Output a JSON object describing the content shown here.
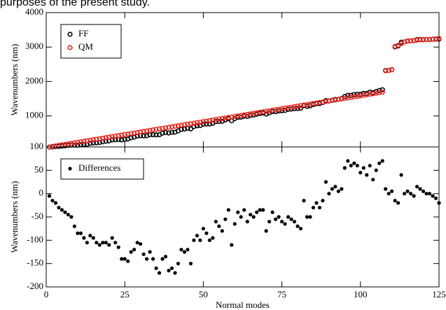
{
  "caption": "purposes of the present study.",
  "chart_data": [
    {
      "type": "scatter",
      "ylabel": "Wavenumbers (nm)",
      "marker": "open",
      "legend": "upper left",
      "xlim": [
        0,
        125
      ],
      "xticks": [
        0,
        25,
        50,
        75,
        100,
        125
      ],
      "ylim": [
        100,
        4000
      ],
      "yticks": [
        100,
        1000,
        2000,
        3000,
        4000
      ],
      "x": [
        1,
        2,
        3,
        4,
        5,
        6,
        7,
        8,
        9,
        10,
        11,
        12,
        13,
        14,
        15,
        16,
        17,
        18,
        19,
        20,
        21,
        22,
        23,
        24,
        25,
        26,
        27,
        28,
        29,
        30,
        31,
        32,
        33,
        34,
        35,
        36,
        37,
        38,
        39,
        40,
        41,
        42,
        43,
        44,
        45,
        46,
        47,
        48,
        49,
        50,
        51,
        52,
        53,
        54,
        55,
        56,
        57,
        58,
        59,
        60,
        61,
        62,
        63,
        64,
        65,
        66,
        67,
        68,
        69,
        70,
        71,
        72,
        73,
        74,
        75,
        76,
        77,
        78,
        79,
        80,
        81,
        82,
        83,
        84,
        85,
        86,
        87,
        88,
        89,
        90,
        91,
        92,
        93,
        94,
        95,
        96,
        97,
        98,
        99,
        100,
        101,
        102,
        103,
        104,
        105,
        106,
        107,
        108,
        109,
        110,
        111,
        112,
        113,
        114,
        115,
        116,
        117,
        118,
        119,
        120,
        121,
        122,
        123,
        124,
        125
      ],
      "series": [
        {
          "name": "FF",
          "color": "#000000",
          "values": [
            95,
            100,
            110,
            115,
            125,
            135,
            145,
            155,
            150,
            150,
            165,
            170,
            175,
            205,
            215,
            220,
            230,
            250,
            265,
            275,
            305,
            310,
            315,
            305,
            320,
            330,
            365,
            385,
            415,
            427,
            420,
            425,
            455,
            455,
            450,
            455,
            500,
            520,
            505,
            525,
            530,
            565,
            610,
            620,
            640,
            625,
            690,
            715,
            720,
            760,
            765,
            765,
            785,
            835,
            840,
            845,
            885,
            920,
            860,
            920,
            960,
            965,
            995,
            985,
            1015,
            1025,
            1050,
            1070,
            1085,
            1055,
            1090,
            1125,
            1125,
            1145,
            1150,
            1160,
            1190,
            1200,
            1210,
            1215,
            1225,
            1300,
            1280,
            1295,
            1330,
            1355,
            1360,
            1390,
            1445,
            1435,
            1460,
            1480,
            1485,
            1505,
            1565,
            1595,
            1600,
            1620,
            1630,
            1630,
            1655,
            1655,
            1690,
            1675,
            1710,
            1740,
            1760,
            2320,
            2320,
            2345,
            3005,
            3030,
            3140,
            3150,
            3175,
            3180,
            3185,
            3215,
            3220,
            3215,
            3220,
            3220,
            3225,
            3230,
            3230
          ]
        },
        {
          "name": "QM",
          "color": "#e8231c",
          "values": [
            100,
            115,
            130,
            145,
            160,
            175,
            190,
            205,
            220,
            235,
            250,
            265,
            280,
            295,
            310,
            325,
            340,
            355,
            370,
            385,
            400,
            415,
            430,
            445,
            460,
            475,
            490,
            505,
            520,
            535,
            550,
            565,
            580,
            595,
            610,
            625,
            640,
            655,
            670,
            685,
            700,
            715,
            730,
            745,
            760,
            775,
            790,
            805,
            820,
            835,
            850,
            865,
            880,
            895,
            910,
            925,
            940,
            955,
            970,
            985,
            1000,
            1015,
            1030,
            1045,
            1060,
            1075,
            1090,
            1105,
            1120,
            1135,
            1150,
            1165,
            1180,
            1195,
            1210,
            1225,
            1240,
            1255,
            1270,
            1285,
            1300,
            1315,
            1330,
            1345,
            1360,
            1375,
            1390,
            1405,
            1420,
            1435,
            1450,
            1465,
            1480,
            1495,
            1510,
            1525,
            1540,
            1555,
            1570,
            1585,
            1600,
            1615,
            1630,
            1645,
            1660,
            1675,
            1690,
            2310,
            2320,
            2340,
            3020,
            3050,
            3100,
            3150,
            3170,
            3180,
            3190,
            3200,
            3210,
            3210,
            3220,
            3220,
            3230,
            3240,
            3250
          ]
        }
      ]
    },
    {
      "type": "scatter",
      "ylabel": "Wavenumbers (nm)",
      "xlabel": "Normal modes",
      "marker": "filled",
      "legend": "upper left",
      "xlim": [
        0,
        125
      ],
      "xticks": [
        0,
        25,
        50,
        75,
        100,
        125
      ],
      "ylim": [
        -200,
        100
      ],
      "yticks": [
        -200,
        -150,
        -100,
        -50,
        0,
        50
      ],
      "x": [
        1,
        2,
        3,
        4,
        5,
        6,
        7,
        8,
        9,
        10,
        11,
        12,
        13,
        14,
        15,
        16,
        17,
        18,
        19,
        20,
        21,
        22,
        23,
        24,
        25,
        26,
        27,
        28,
        29,
        30,
        31,
        32,
        33,
        34,
        35,
        36,
        37,
        38,
        39,
        40,
        41,
        42,
        43,
        44,
        45,
        46,
        47,
        48,
        49,
        50,
        51,
        52,
        53,
        54,
        55,
        56,
        57,
        58,
        59,
        60,
        61,
        62,
        63,
        64,
        65,
        66,
        67,
        68,
        69,
        70,
        71,
        72,
        73,
        74,
        75,
        76,
        77,
        78,
        79,
        80,
        81,
        82,
        83,
        84,
        85,
        86,
        87,
        88,
        89,
        90,
        91,
        92,
        93,
        94,
        95,
        96,
        97,
        98,
        99,
        100,
        101,
        102,
        103,
        104,
        105,
        106,
        107,
        108,
        109,
        110,
        111,
        112,
        113,
        114,
        115,
        116,
        117,
        118,
        119,
        120,
        121,
        122,
        123,
        124,
        125
      ],
      "series": [
        {
          "name": "Differences",
          "color": "#000000",
          "values": [
            -5,
            -15,
            -20,
            -30,
            -35,
            -40,
            -45,
            -50,
            -70,
            -85,
            -85,
            -95,
            -105,
            -90,
            -95,
            -105,
            -110,
            -105,
            -105,
            -110,
            -95,
            -105,
            -115,
            -140,
            -140,
            -145,
            -125,
            -120,
            -105,
            -108,
            -130,
            -140,
            -125,
            -140,
            -160,
            -170,
            -140,
            -135,
            -165,
            -160,
            -170,
            -150,
            -120,
            -125,
            -120,
            -150,
            -100,
            -90,
            -100,
            -75,
            -85,
            -100,
            -95,
            -60,
            -70,
            -80,
            -55,
            -35,
            -110,
            -65,
            -40,
            -50,
            -35,
            -60,
            -45,
            -50,
            -40,
            -35,
            -35,
            -80,
            -60,
            -40,
            -55,
            -50,
            -60,
            -65,
            -50,
            -55,
            -60,
            -70,
            -75,
            -15,
            -50,
            -50,
            -30,
            -20,
            -30,
            -15,
            25,
            0,
            10,
            15,
            5,
            10,
            55,
            70,
            60,
            65,
            60,
            45,
            55,
            40,
            60,
            30,
            50,
            65,
            70,
            10,
            0,
            5,
            -15,
            -20,
            40,
            0,
            5,
            0,
            -5,
            15,
            10,
            5,
            0,
            0,
            -5,
            -10,
            -20
          ]
        }
      ]
    }
  ]
}
